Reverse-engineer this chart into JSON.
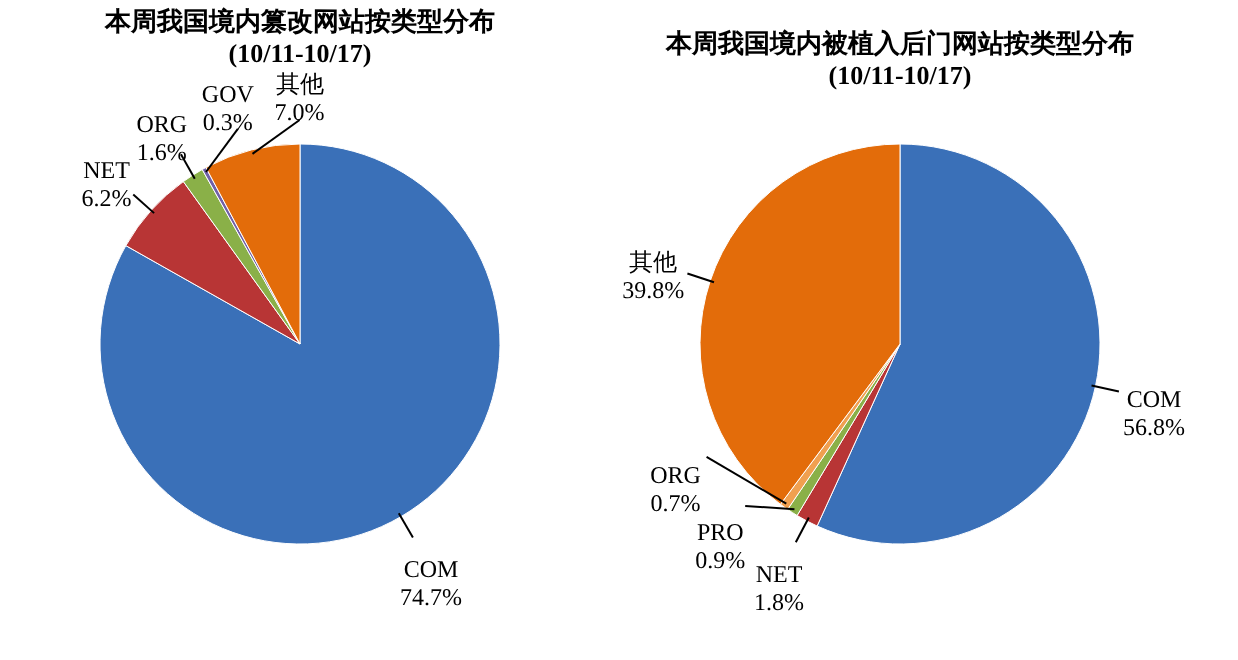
{
  "chart_data": [
    {
      "type": "pie",
      "title": "本周我国境内篡改网站按类型分布",
      "subtitle": "(10/11-10/17)",
      "categories": [
        "COM",
        "NET",
        "ORG",
        "GOV",
        "其他"
      ],
      "values": [
        74.7,
        6.2,
        1.6,
        0.3,
        7.0
      ],
      "value_labels": [
        "74.7%",
        "6.2%",
        "1.6%",
        "0.3%",
        "7.0%"
      ],
      "colors": [
        "#3a70b8",
        "#b83535",
        "#8ab048",
        "#7060a8",
        "#e36c0a"
      ],
      "legend": false
    },
    {
      "type": "pie",
      "title": "本周我国境内被植入后门网站按类型分布",
      "subtitle": "(10/11-10/17)",
      "categories": [
        "COM",
        "NET",
        "PRO",
        "ORG",
        "其他"
      ],
      "values": [
        56.8,
        1.8,
        0.9,
        0.7,
        39.8
      ],
      "value_labels": [
        "56.8%",
        "1.8%",
        "0.9%",
        "0.7%",
        "39.8%"
      ],
      "colors": [
        "#3a70b8",
        "#b83535",
        "#8ab048",
        "#f0a050",
        "#e36c0a"
      ],
      "legend": false
    }
  ]
}
